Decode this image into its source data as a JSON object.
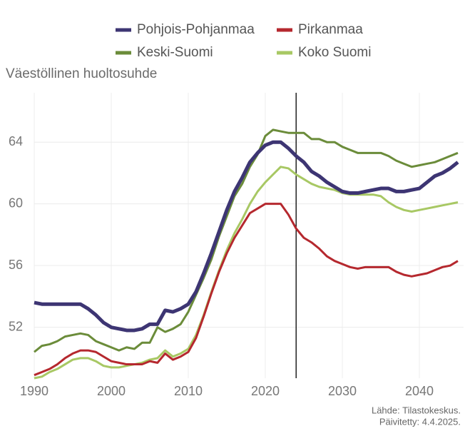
{
  "chart_data": {
    "type": "line",
    "subtitle": "Väestöllinen huoltosuhde",
    "caption": [
      "Lähde: Tilastokeskus.",
      "Päivitetty: 4.4.2025."
    ],
    "x": [
      1990,
      1991,
      1992,
      1993,
      1994,
      1995,
      1996,
      1997,
      1998,
      1999,
      2000,
      2001,
      2002,
      2003,
      2004,
      2005,
      2006,
      2007,
      2008,
      2009,
      2010,
      2011,
      2012,
      2013,
      2014,
      2015,
      2016,
      2017,
      2018,
      2019,
      2020,
      2021,
      2022,
      2023,
      2024,
      2025,
      2026,
      2027,
      2028,
      2029,
      2030,
      2031,
      2032,
      2033,
      2034,
      2035,
      2036,
      2037,
      2038,
      2039,
      2040,
      2041,
      2042,
      2043,
      2044,
      2045
    ],
    "series": [
      {
        "name": "Pohjois-Pohjanmaa",
        "color": "#3d3573",
        "values": [
          53.6,
          53.5,
          53.5,
          53.5,
          53.5,
          53.5,
          53.5,
          53.2,
          52.8,
          52.3,
          52.0,
          51.9,
          51.8,
          51.8,
          51.9,
          52.2,
          52.2,
          53.1,
          53.0,
          53.2,
          53.5,
          54.3,
          55.5,
          56.8,
          58.2,
          59.6,
          60.8,
          61.7,
          62.7,
          63.3,
          63.8,
          64.0,
          64.0,
          63.6,
          63.1,
          62.7,
          62.1,
          61.8,
          61.4,
          61.1,
          60.8,
          60.7,
          60.7,
          60.8,
          60.9,
          61.0,
          61.0,
          60.8,
          60.8,
          60.9,
          61.0,
          61.4,
          61.8,
          62.0,
          62.3,
          62.7
        ]
      },
      {
        "name": "Pirkanmaa",
        "color": "#b5282e",
        "values": [
          48.9,
          49.1,
          49.3,
          49.6,
          50.0,
          50.3,
          50.5,
          50.5,
          50.4,
          50.1,
          49.8,
          49.7,
          49.6,
          49.6,
          49.6,
          49.8,
          49.7,
          50.3,
          49.9,
          50.1,
          50.4,
          51.3,
          52.7,
          54.2,
          55.6,
          56.8,
          57.8,
          58.6,
          59.4,
          59.7,
          60.0,
          60.0,
          60.0,
          59.3,
          58.4,
          57.8,
          57.5,
          57.1,
          56.6,
          56.3,
          56.1,
          55.9,
          55.8,
          55.9,
          55.9,
          55.9,
          55.9,
          55.6,
          55.4,
          55.3,
          55.4,
          55.5,
          55.7,
          55.9,
          56.0,
          56.3
        ]
      },
      {
        "name": "Keski-Suomi",
        "color": "#6b8c3a",
        "values": [
          50.4,
          50.8,
          50.9,
          51.1,
          51.4,
          51.5,
          51.6,
          51.5,
          51.1,
          50.9,
          50.7,
          50.5,
          50.7,
          50.6,
          51.0,
          51.0,
          52.0,
          51.7,
          51.9,
          52.2,
          53.0,
          54.1,
          55.2,
          56.4,
          57.9,
          59.2,
          60.5,
          61.3,
          62.4,
          63.2,
          64.4,
          64.8,
          64.7,
          64.6,
          64.6,
          64.6,
          64.2,
          64.2,
          64.0,
          64.0,
          63.7,
          63.5,
          63.3,
          63.3,
          63.3,
          63.3,
          63.1,
          62.8,
          62.6,
          62.4,
          62.5,
          62.6,
          62.7,
          62.9,
          63.1,
          63.3
        ]
      },
      {
        "name": "Koko Suomi",
        "color": "#a8c864",
        "values": [
          48.7,
          48.8,
          49.1,
          49.3,
          49.6,
          49.9,
          50.0,
          50.0,
          49.8,
          49.5,
          49.4,
          49.4,
          49.5,
          49.6,
          49.7,
          49.9,
          50.0,
          50.5,
          50.1,
          50.3,
          50.6,
          51.5,
          52.8,
          54.3,
          55.7,
          57.0,
          58.1,
          59.0,
          60.0,
          60.8,
          61.4,
          61.9,
          62.4,
          62.3,
          61.9,
          61.6,
          61.3,
          61.1,
          61.0,
          60.9,
          60.7,
          60.6,
          60.6,
          60.6,
          60.6,
          60.5,
          60.1,
          59.8,
          59.6,
          59.5,
          59.6,
          59.7,
          59.8,
          59.9,
          60.0,
          60.1
        ]
      }
    ],
    "vline": 2024,
    "xlim": [
      1990,
      2045
    ],
    "xticks": [
      1990,
      2000,
      2010,
      2020,
      2030,
      2040
    ],
    "ylim": [
      48.7,
      67.2
    ],
    "yticks": [
      52,
      56,
      60,
      64
    ],
    "grid": true,
    "legend": "top"
  }
}
